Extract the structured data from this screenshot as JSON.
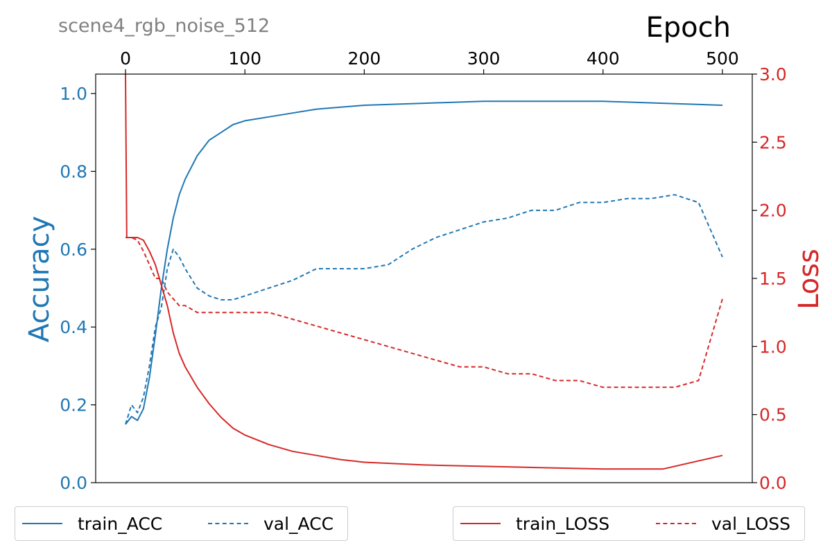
{
  "chart_data": {
    "type": "line",
    "title": "scene4_rgb_noise_512",
    "xlabel": "Epoch",
    "ylabel_left": "Accuracy",
    "ylabel_right": "Loss",
    "xlim": [
      -25,
      525
    ],
    "ylim_left": [
      0,
      1.05
    ],
    "ylim_right": [
      0,
      3.0
    ],
    "x_ticks": [
      0,
      100,
      200,
      300,
      400,
      500
    ],
    "y_ticks_left": [
      "0.0",
      "0.2",
      "0.4",
      "0.6",
      "0.8",
      "1.0"
    ],
    "y_ticks_right": [
      "0.0",
      "0.5",
      "1.0",
      "1.5",
      "2.0",
      "2.5",
      "3.0"
    ],
    "grid": false,
    "x_axis_position": "top",
    "legend_placement": "bottom",
    "colors": {
      "acc": "#1f77b4",
      "loss": "#d62728",
      "title": "#808080"
    },
    "series": [
      {
        "name": "train_ACC",
        "axis": "left",
        "style": "solid",
        "color": "#1f77b4",
        "x": [
          0,
          5,
          10,
          15,
          20,
          25,
          30,
          35,
          40,
          45,
          50,
          60,
          70,
          80,
          90,
          100,
          120,
          140,
          160,
          180,
          200,
          250,
          300,
          350,
          400,
          450,
          500
        ],
        "y": [
          0.15,
          0.17,
          0.16,
          0.19,
          0.27,
          0.38,
          0.5,
          0.6,
          0.68,
          0.74,
          0.78,
          0.84,
          0.88,
          0.9,
          0.92,
          0.93,
          0.94,
          0.95,
          0.96,
          0.965,
          0.97,
          0.975,
          0.98,
          0.98,
          0.98,
          0.975,
          0.97
        ]
      },
      {
        "name": "val_ACC",
        "axis": "left",
        "style": "dashed",
        "color": "#1f77b4",
        "x": [
          0,
          5,
          10,
          15,
          20,
          25,
          30,
          35,
          40,
          45,
          50,
          60,
          70,
          80,
          90,
          100,
          120,
          140,
          160,
          180,
          200,
          220,
          240,
          260,
          280,
          300,
          320,
          340,
          360,
          380,
          400,
          420,
          440,
          460,
          480,
          500
        ],
        "y": [
          0.15,
          0.2,
          0.18,
          0.22,
          0.3,
          0.4,
          0.45,
          0.55,
          0.6,
          0.58,
          0.55,
          0.5,
          0.48,
          0.47,
          0.47,
          0.48,
          0.5,
          0.52,
          0.55,
          0.55,
          0.55,
          0.56,
          0.6,
          0.63,
          0.65,
          0.67,
          0.68,
          0.7,
          0.7,
          0.72,
          0.72,
          0.73,
          0.73,
          0.74,
          0.72,
          0.58
        ]
      },
      {
        "name": "train_LOSS",
        "axis": "right",
        "style": "solid",
        "color": "#d62728",
        "x": [
          0,
          1,
          5,
          10,
          15,
          20,
          25,
          30,
          35,
          40,
          45,
          50,
          60,
          70,
          80,
          90,
          100,
          120,
          140,
          160,
          180,
          200,
          250,
          300,
          350,
          400,
          450,
          500
        ],
        "y": [
          3.0,
          1.8,
          1.8,
          1.8,
          1.78,
          1.7,
          1.6,
          1.45,
          1.3,
          1.1,
          0.95,
          0.85,
          0.7,
          0.58,
          0.48,
          0.4,
          0.35,
          0.28,
          0.23,
          0.2,
          0.17,
          0.15,
          0.13,
          0.12,
          0.11,
          0.1,
          0.1,
          0.2
        ]
      },
      {
        "name": "val_LOSS",
        "axis": "right",
        "style": "dashed",
        "color": "#d62728",
        "x": [
          0,
          5,
          10,
          15,
          20,
          25,
          30,
          35,
          40,
          45,
          50,
          60,
          70,
          80,
          90,
          100,
          120,
          140,
          160,
          180,
          200,
          220,
          240,
          260,
          280,
          300,
          320,
          340,
          360,
          380,
          400,
          420,
          440,
          460,
          480,
          500
        ],
        "y": [
          1.8,
          1.8,
          1.78,
          1.7,
          1.6,
          1.5,
          1.5,
          1.4,
          1.35,
          1.3,
          1.3,
          1.25,
          1.25,
          1.25,
          1.25,
          1.25,
          1.25,
          1.2,
          1.15,
          1.1,
          1.05,
          1.0,
          0.95,
          0.9,
          0.85,
          0.85,
          0.8,
          0.8,
          0.75,
          0.75,
          0.7,
          0.7,
          0.7,
          0.7,
          0.75,
          1.35
        ]
      }
    ]
  }
}
